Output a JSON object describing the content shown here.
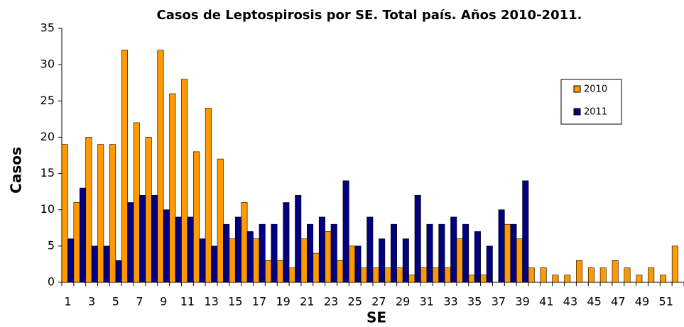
{
  "chart_data": {
    "type": "bar",
    "title": "Casos de Leptospirosis por SE. Total país. Años 2010-2011.",
    "x_label": "SE",
    "y_label": "Casos",
    "categories": [
      "1",
      null,
      "3",
      null,
      "5",
      null,
      "7",
      null,
      "9",
      null,
      "11",
      null,
      "13",
      null,
      "15",
      null,
      "17",
      null,
      "19",
      null,
      "21",
      null,
      "23",
      null,
      "25",
      null,
      "27",
      null,
      "29",
      null,
      "31",
      null,
      "33",
      null,
      "35",
      null,
      "37",
      null,
      "39",
      null,
      "41",
      null,
      "43",
      null,
      "45",
      null,
      "47",
      null,
      "49",
      null,
      "51",
      null
    ],
    "series": [
      {
        "name": "2010",
        "color": "#ff9900",
        "values": [
          19,
          11,
          20,
          19,
          19,
          32,
          22,
          20,
          32,
          26,
          28,
          18,
          24,
          17,
          6,
          11,
          6,
          3,
          3,
          2,
          6,
          4,
          7,
          3,
          5,
          2,
          2,
          2,
          2,
          1,
          2,
          2,
          2,
          6,
          1,
          1,
          0,
          8,
          6,
          2,
          2,
          1,
          1,
          3,
          2,
          2,
          3,
          2,
          1,
          2,
          1,
          5
        ]
      },
      {
        "name": "2011",
        "color": "#000080",
        "values": [
          6,
          13,
          5,
          5,
          3,
          11,
          12,
          12,
          10,
          9,
          9,
          6,
          5,
          8,
          9,
          7,
          8,
          8,
          11,
          12,
          8,
          9,
          8,
          14,
          5,
          9,
          6,
          8,
          6,
          12,
          8,
          8,
          9,
          8,
          7,
          5,
          10,
          8,
          14,
          null,
          null,
          null,
          null,
          null,
          null,
          null,
          null,
          null,
          null,
          null,
          null,
          null
        ]
      }
    ],
    "ylim": [
      0,
      35
    ],
    "yticks": [
      0,
      5,
      10,
      15,
      20,
      25,
      30,
      35
    ],
    "legend": "upper-right"
  }
}
